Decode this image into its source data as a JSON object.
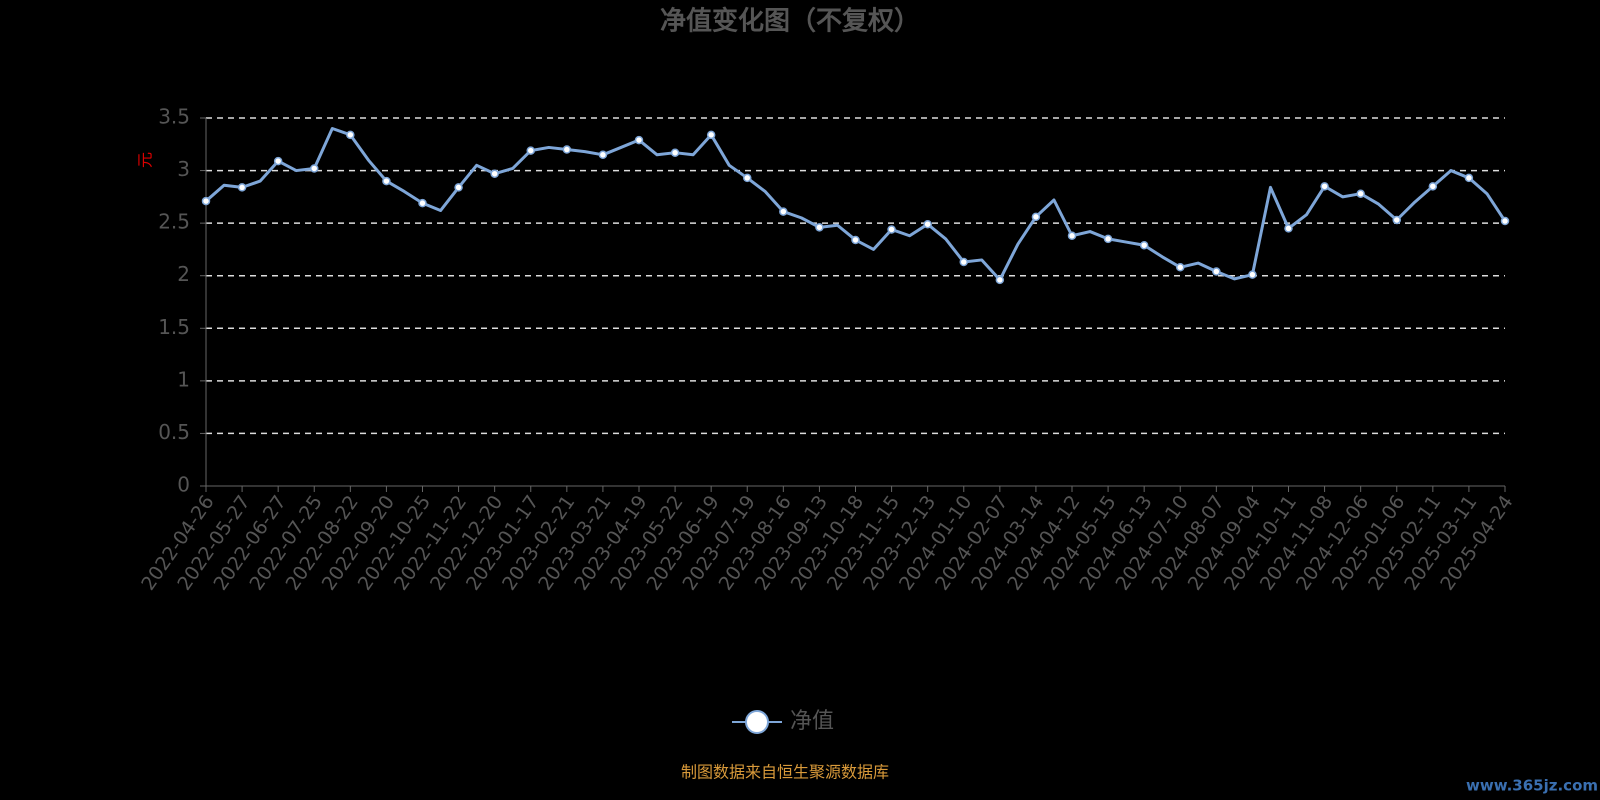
{
  "chart_data": {
    "type": "line",
    "title": "净值变化图（不复权）",
    "y_label": "元",
    "source": "制图数据来自恒生聚源数据库",
    "watermark": "www.365jz.com",
    "categories": [
      "2022-04-26",
      null,
      "2022-05-27",
      null,
      "2022-06-27",
      null,
      "2022-07-25",
      null,
      "2022-08-22",
      null,
      "2022-09-20",
      null,
      "2022-10-25",
      null,
      "2022-11-22",
      null,
      "2022-12-20",
      null,
      "2023-01-17",
      null,
      "2023-02-21",
      null,
      "2023-03-21",
      null,
      "2023-04-19",
      null,
      "2023-05-22",
      null,
      "2023-06-19",
      null,
      "2023-07-19",
      null,
      "2023-08-16",
      null,
      "2023-09-13",
      null,
      "2023-10-18",
      null,
      "2023-11-15",
      null,
      "2023-12-13",
      null,
      "2024-01-10",
      null,
      "2024-02-07",
      null,
      "2024-03-14",
      null,
      "2024-04-12",
      null,
      "2024-05-15",
      null,
      "2024-06-13",
      null,
      "2024-07-10",
      null,
      "2024-08-07",
      null,
      "2024-09-04",
      null,
      "2024-10-11",
      null,
      "2024-11-08",
      null,
      "2024-12-06",
      null,
      "2025-01-06",
      null,
      "2025-02-11",
      null,
      "2025-03-11",
      null,
      "2025-04-24"
    ],
    "series": [
      {
        "name": "净值",
        "color": "#7ea6d8",
        "values": [
          2.71,
          2.86,
          2.84,
          2.9,
          3.09,
          3.0,
          3.02,
          3.4,
          3.34,
          3.1,
          2.9,
          2.8,
          2.69,
          2.62,
          2.84,
          3.05,
          2.97,
          3.02,
          3.19,
          3.22,
          3.2,
          3.18,
          3.15,
          3.22,
          3.29,
          3.15,
          3.17,
          3.15,
          3.34,
          3.05,
          2.93,
          2.8,
          2.61,
          2.55,
          2.46,
          2.48,
          2.34,
          2.25,
          2.44,
          2.38,
          2.49,
          2.35,
          2.13,
          2.15,
          1.96,
          2.3,
          2.56,
          2.72,
          2.38,
          2.42,
          2.35,
          2.32,
          2.29,
          2.18,
          2.08,
          2.12,
          2.04,
          1.97,
          2.01,
          2.84,
          2.45,
          2.58,
          2.85,
          2.75,
          2.78,
          2.68,
          2.53,
          2.7,
          2.85,
          3.0,
          2.93,
          2.78,
          2.52
        ]
      }
    ],
    "ylim": [
      0,
      3.5
    ],
    "yticks": [
      0,
      0.5,
      1,
      1.5,
      2,
      2.5,
      3,
      3.5
    ],
    "grid": true
  }
}
